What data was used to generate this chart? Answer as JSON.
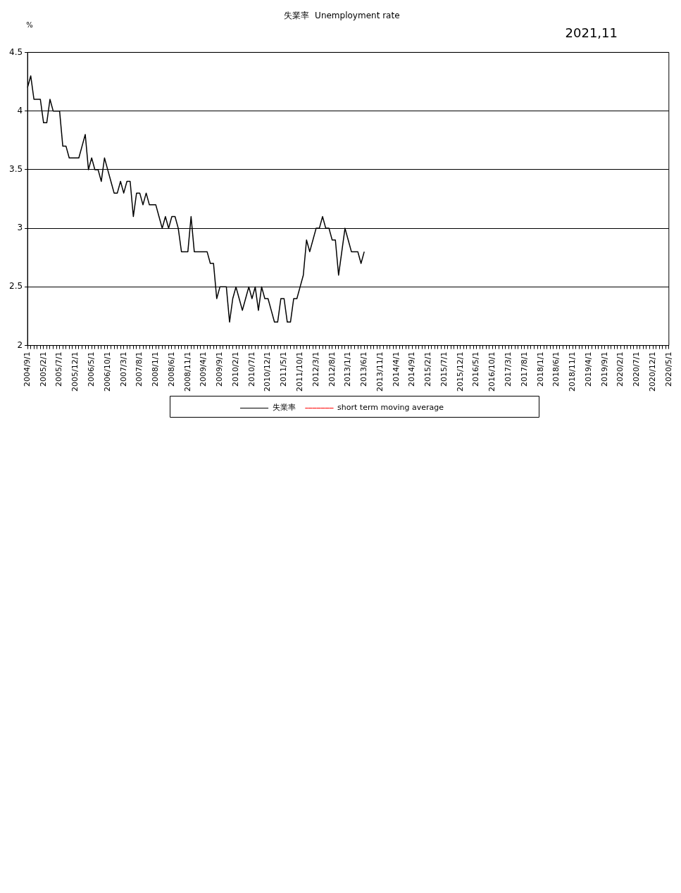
{
  "chart_data": {
    "type": "line",
    "title": "失業率  Unemployment rate",
    "ylabel": "%",
    "annotations": [
      "2021,11"
    ],
    "categories": [
      "2004/9/1",
      null,
      null,
      null,
      null,
      "2005/2/1",
      null,
      null,
      null,
      null,
      "2005/7/1",
      null,
      null,
      null,
      null,
      "2005/12/1",
      null,
      null,
      null,
      null,
      "2006/5/1",
      null,
      null,
      null,
      null,
      "2006/10/1",
      null,
      null,
      null,
      null,
      "2007/3/1",
      null,
      null,
      null,
      null,
      "2007/8/1",
      null,
      null,
      null,
      null,
      "2008/1/1",
      null,
      null,
      null,
      null,
      "2008/6/1",
      null,
      null,
      null,
      null,
      "2008/11/1",
      null,
      null,
      null,
      null,
      "2009/4/1",
      null,
      null,
      null,
      null,
      "2009/9/1",
      null,
      null,
      null,
      null,
      "2010/2/1",
      null,
      null,
      null,
      null,
      "2010/7/1",
      null,
      null,
      null,
      null,
      "2010/12/1",
      null,
      null,
      null,
      null,
      "2011/5/1",
      null,
      null,
      null,
      null,
      "2011/10/1",
      null,
      null,
      null,
      null,
      "2012/3/1",
      null,
      null,
      null,
      null,
      "2012/8/1",
      null,
      null,
      null,
      null,
      "2013/1/1",
      null,
      null,
      null,
      null,
      "2013/6/1",
      null,
      null,
      null,
      null,
      "2013/11/1",
      null,
      null,
      null,
      null,
      "2014/4/1",
      null,
      null,
      null,
      null,
      "2014/9/1",
      null,
      null,
      null,
      null,
      "2015/2/1",
      null,
      null,
      null,
      null,
      "2015/7/1",
      null,
      null,
      null,
      null,
      "2015/12/1",
      null,
      null,
      null,
      null,
      "2016/5/1",
      null,
      null,
      null,
      null,
      "2016/10/1",
      null,
      null,
      null,
      null,
      "2017/3/1",
      null,
      null,
      null,
      null,
      "2017/8/1",
      null,
      null,
      null,
      null,
      "2018/1/1",
      null,
      null,
      null,
      null,
      "2018/6/1",
      null,
      null,
      null,
      null,
      "2018/11/1",
      null,
      null,
      null,
      null,
      "2019/4/1",
      null,
      null,
      null,
      null,
      "2019/9/1",
      null,
      null,
      null,
      null,
      "2020/2/1",
      null,
      null,
      null,
      null,
      "2020/7/1",
      null,
      null,
      null,
      null,
      "2020/12/1",
      null,
      null,
      null,
      null,
      "2020/5/1"
    ],
    "series": [
      {
        "name": "失業率",
        "color": "#000000",
        "line_style": "solid",
        "values": [
          4.2,
          4.3,
          4.1,
          4.1,
          4.1,
          3.9,
          3.9,
          4.1,
          4.0,
          4.0,
          4.0,
          3.7,
          3.7,
          3.6,
          3.6,
          3.6,
          3.6,
          3.7,
          3.8,
          3.5,
          3.6,
          3.5,
          3.5,
          3.4,
          3.6,
          3.5,
          3.4,
          3.3,
          3.3,
          3.4,
          3.3,
          3.4,
          3.4,
          3.1,
          3.3,
          3.3,
          3.2,
          3.3,
          3.2,
          3.2,
          3.2,
          3.1,
          3.0,
          3.1,
          3.0,
          3.1,
          3.1,
          3.0,
          2.8,
          2.8,
          2.8,
          3.1,
          2.8,
          2.8,
          2.8,
          2.8,
          2.8,
          2.7,
          2.7,
          2.4,
          2.5,
          2.5,
          2.5,
          2.2,
          2.4,
          2.5,
          2.4,
          2.3,
          2.4,
          2.5,
          2.4,
          2.5,
          2.3,
          2.5,
          2.4,
          2.4,
          2.3,
          2.2,
          2.2,
          2.4,
          2.4,
          2.2,
          2.2,
          2.4,
          2.4,
          2.5,
          2.6,
          2.9,
          2.8,
          2.9,
          3.0,
          3.0,
          3.1,
          3.0,
          3.0,
          2.9,
          2.9,
          2.6,
          2.8,
          3.0,
          2.9,
          2.8,
          2.8,
          2.8,
          2.7,
          2.8,
          null,
          null,
          null,
          null,
          null,
          null,
          null,
          null,
          null,
          null,
          null,
          null,
          null,
          null,
          null,
          null,
          null,
          null,
          null,
          null,
          null,
          null,
          null,
          null,
          null,
          null,
          null,
          null,
          null,
          null,
          null,
          null,
          null,
          null,
          null,
          null,
          null,
          null,
          null,
          null,
          null,
          null,
          null,
          null,
          null,
          null,
          null,
          null,
          null,
          null,
          null,
          null,
          null,
          null,
          null,
          null,
          null,
          null,
          null,
          null,
          null,
          null,
          null,
          null,
          null,
          null,
          null,
          null,
          null,
          null,
          null,
          null,
          null,
          null,
          null,
          null,
          null,
          null,
          null,
          null,
          null,
          null,
          null,
          null,
          null,
          null,
          null,
          null,
          null,
          null,
          null,
          null,
          null,
          null,
          null
        ]
      },
      {
        "name": "short term moving average",
        "color": "#ff0000",
        "line_style": "dashed",
        "values": [
          null,
          null,
          null,
          null,
          null,
          null,
          null,
          null,
          null,
          null,
          null,
          null,
          null,
          null,
          null,
          null,
          null,
          null,
          null,
          null,
          null,
          null,
          null,
          null,
          null,
          null,
          null,
          null,
          null,
          null,
          null,
          null,
          null,
          null,
          null,
          null,
          null,
          null,
          null,
          null,
          null,
          null,
          null,
          null,
          null,
          null,
          null,
          null,
          null,
          null,
          null,
          null,
          null,
          null,
          null,
          null,
          null,
          null,
          null,
          null,
          null,
          null,
          null,
          null,
          null,
          null,
          null,
          null,
          null,
          null,
          null,
          null,
          null,
          null,
          null,
          null,
          null,
          null,
          null,
          null,
          null,
          null,
          null,
          null,
          null,
          null,
          null,
          null,
          null,
          null,
          null,
          null,
          null,
          null,
          null,
          null,
          null,
          null,
          null,
          null,
          null,
          null,
          null,
          null,
          null,
          null,
          null,
          null,
          null,
          null,
          null,
          null,
          null,
          null,
          null,
          null,
          null,
          null,
          null,
          null,
          null,
          null,
          null,
          null,
          null,
          null,
          null,
          null,
          null,
          null,
          null,
          null,
          null,
          null,
          null,
          null,
          null,
          null,
          null,
          null,
          null,
          null,
          null,
          null,
          null,
          null,
          null,
          null,
          null,
          null,
          null,
          null,
          null,
          null,
          null,
          null,
          null,
          null,
          null,
          null,
          null,
          null,
          null,
          null,
          null,
          null,
          null,
          null,
          null,
          null,
          null,
          null,
          null,
          null,
          null,
          null,
          null,
          null,
          null,
          null,
          null,
          null,
          null,
          null,
          null,
          null,
          null,
          null,
          null,
          null,
          null,
          null,
          null,
          null,
          null,
          null,
          null,
          null,
          null,
          null,
          null
        ]
      }
    ],
    "ylim": [
      2,
      4.5
    ],
    "yticks": [
      2,
      2.5,
      3,
      3.5,
      4,
      4.5
    ],
    "grid": "y",
    "legend": "bottom",
    "marker": "none"
  }
}
